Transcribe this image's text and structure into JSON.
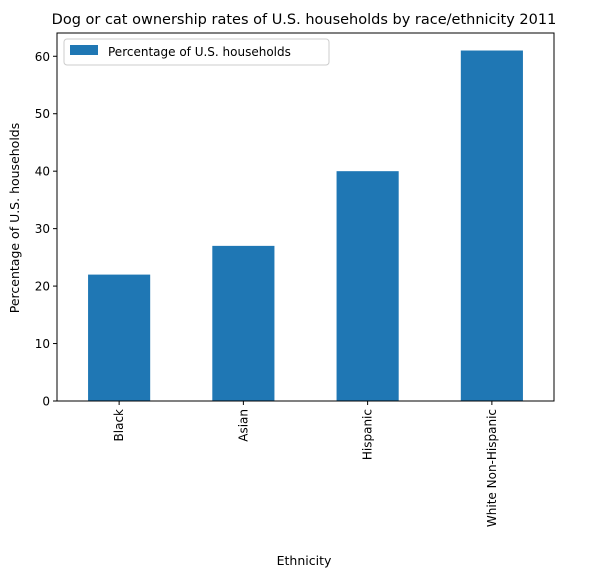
{
  "chart_data": {
    "type": "bar",
    "title": "Dog or cat ownership rates of U.S. households by race/ethnicity 2011",
    "xlabel": "Ethnicity",
    "ylabel": "Percentage of U.S. households",
    "categories": [
      "Black",
      "Asian",
      "Hispanic",
      "White Non-Hispanic"
    ],
    "series": [
      {
        "name": "Percentage of U.S. households",
        "values": [
          22,
          27,
          40,
          61
        ],
        "color": "#1f77b4"
      }
    ],
    "ylim": [
      0,
      64.05
    ],
    "yticks": [
      0,
      10,
      20,
      30,
      40,
      50,
      60
    ],
    "grid": false,
    "legend_position": "top-left",
    "xtick_rotation": "vertical"
  }
}
